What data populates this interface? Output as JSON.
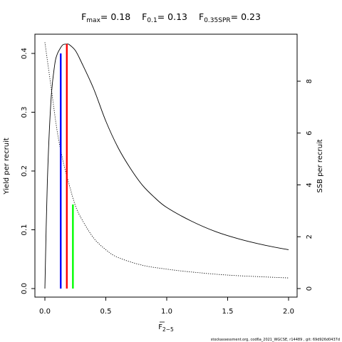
{
  "title": {
    "fmax": {
      "base": "F",
      "sub": "max",
      "value": "= 0.18"
    },
    "f01": {
      "base": "F",
      "sub": "0.1",
      "value": "= 0.13"
    },
    "f035spr": {
      "base": "F",
      "sub": "0.35SPR",
      "value": "= 0.23"
    }
  },
  "xlabel": {
    "base": "F",
    "sub": "2−5"
  },
  "ylabel_left": "Yield per recruit",
  "ylabel_right": "SSB per recruit",
  "footer": "stockassessment.org, cod6a_2021_WGCSE, r14489 , git: 69d926d0437d",
  "colors": {
    "fmax": "#ff0000",
    "f01": "#0000ff",
    "f035spr": "#00ff00",
    "curves": "#000000"
  },
  "chart_data": {
    "type": "line",
    "xlim": [
      0,
      2
    ],
    "ylim_left": [
      0,
      0.42
    ],
    "ylim_right": [
      0,
      9.6
    ],
    "x_ticks": [
      "0.0",
      "0.5",
      "1.0",
      "1.5",
      "2.0"
    ],
    "x_tick_values": [
      0,
      0.5,
      1,
      1.5,
      2
    ],
    "y_left_ticks": [
      "0.0",
      "0.1",
      "0.2",
      "0.3",
      "0.4"
    ],
    "y_left_tick_values": [
      0,
      0.1,
      0.2,
      0.3,
      0.4
    ],
    "y_right_ticks": [
      "0",
      "2",
      "4",
      "6",
      "8"
    ],
    "y_right_tick_values": [
      0,
      2,
      4,
      6,
      8
    ],
    "grid": false,
    "series": [
      {
        "axis": "left",
        "style": "solid",
        "x": [
          0,
          0.02,
          0.05,
          0.08,
          0.1,
          0.13,
          0.15,
          0.18,
          0.2,
          0.25,
          0.3,
          0.4,
          0.5,
          0.6,
          0.7,
          0.8,
          0.9,
          1.0,
          1.2,
          1.4,
          1.6,
          1.8,
          2.0
        ],
        "y": [
          0,
          0.18,
          0.32,
          0.38,
          0.398,
          0.41,
          0.415,
          0.416,
          0.415,
          0.405,
          0.385,
          0.34,
          0.285,
          0.24,
          0.205,
          0.176,
          0.155,
          0.138,
          0.115,
          0.097,
          0.084,
          0.074,
          0.066
        ]
      },
      {
        "axis": "right",
        "style": "dotted",
        "x": [
          0,
          0.05,
          0.1,
          0.15,
          0.2,
          0.25,
          0.3,
          0.4,
          0.5,
          0.6,
          0.8,
          1.0,
          1.2,
          1.5,
          1.8,
          2.0
        ],
        "y": [
          9.5,
          7.8,
          6.1,
          4.9,
          4.0,
          3.2,
          2.7,
          1.95,
          1.5,
          1.2,
          0.9,
          0.75,
          0.64,
          0.52,
          0.45,
          0.41
        ]
      }
    ],
    "reference_lines": [
      {
        "name": "Fmax",
        "x": 0.18,
        "y_left": 0.416,
        "color": "#ff0000"
      },
      {
        "name": "F0.1",
        "x": 0.13,
        "y_left": 0.4,
        "color": "#0000ff"
      },
      {
        "name": "F0.35SPR",
        "x": 0.23,
        "y_left": 0.143,
        "color": "#00ff00"
      }
    ]
  }
}
